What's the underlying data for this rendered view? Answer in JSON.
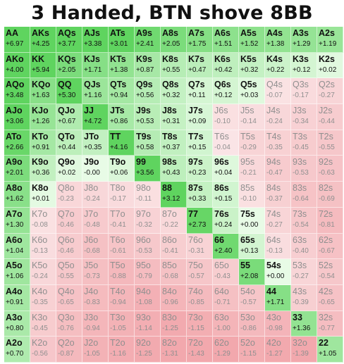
{
  "title": "3 Handed, BTN shove 8BB",
  "colors": {
    "push_strong": "#5fd45f",
    "push_light": "#e8fbe6",
    "neutral": "#ffffff",
    "fold_light": "#fbe9ea",
    "fold_strong": "#f2a8ad"
  },
  "chart_data": {
    "type": "heatmap",
    "title": "3 Handed, BTN shove 8BB",
    "ranks": [
      "A",
      "K",
      "Q",
      "J",
      "T",
      "9",
      "8",
      "7",
      "6",
      "5",
      "4",
      "3",
      "2"
    ],
    "rows": [
      {
        "hands": [
          "AA",
          "AKs",
          "AQs",
          "AJs",
          "ATs",
          "A9s",
          "A8s",
          "A7s",
          "A6s",
          "A5s",
          "A4s",
          "A3s",
          "A2s"
        ],
        "values": [
          6.97,
          4.25,
          3.77,
          3.38,
          3.01,
          2.41,
          2.05,
          1.75,
          1.51,
          1.52,
          1.38,
          1.29,
          1.19
        ],
        "action": [
          "push",
          "push",
          "push",
          "push",
          "push",
          "push",
          "push",
          "push",
          "push",
          "push",
          "push",
          "push",
          "push"
        ]
      },
      {
        "hands": [
          "AKo",
          "KK",
          "KQs",
          "KJs",
          "KTs",
          "K9s",
          "K8s",
          "K7s",
          "K6s",
          "K5s",
          "K4s",
          "K3s",
          "K2s"
        ],
        "values": [
          4.0,
          5.94,
          2.05,
          1.71,
          1.38,
          0.87,
          0.55,
          0.47,
          0.42,
          0.32,
          0.22,
          0.12,
          0.02
        ],
        "action": [
          "push",
          "push",
          "push",
          "push",
          "push",
          "push",
          "push",
          "push",
          "push",
          "push",
          "push",
          "push",
          "push"
        ]
      },
      {
        "hands": [
          "AQo",
          "KQo",
          "QQ",
          "QJs",
          "QTs",
          "Q9s",
          "Q8s",
          "Q7s",
          "Q6s",
          "Q5s",
          "Q4s",
          "Q3s",
          "Q2s"
        ],
        "values": [
          3.48,
          1.63,
          5.3,
          1.16,
          0.94,
          0.56,
          0.32,
          0.11,
          0.12,
          0.03,
          -0.07,
          -0.17,
          -0.27
        ],
        "action": [
          "push",
          "push",
          "push",
          "push",
          "push",
          "push",
          "push",
          "push",
          "push",
          "push",
          "fold",
          "fold",
          "fold"
        ]
      },
      {
        "hands": [
          "AJo",
          "KJo",
          "QJo",
          "JJ",
          "JTs",
          "J9s",
          "J8s",
          "J7s",
          "J6s",
          "J5s",
          "J4s",
          "J3s",
          "J2s"
        ],
        "values": [
          3.06,
          1.26,
          0.67,
          4.72,
          0.86,
          0.53,
          0.31,
          0.09,
          -0.1,
          -0.14,
          -0.24,
          -0.34,
          -0.44
        ],
        "action": [
          "push",
          "push",
          "push",
          "push",
          "push",
          "push",
          "push",
          "push",
          "fold",
          "fold",
          "fold",
          "fold",
          "fold"
        ]
      },
      {
        "hands": [
          "ATo",
          "KTo",
          "QTo",
          "JTo",
          "TT",
          "T9s",
          "T8s",
          "T7s",
          "T6s",
          "T5s",
          "T4s",
          "T3s",
          "T2s"
        ],
        "values": [
          2.66,
          0.91,
          0.44,
          0.35,
          4.16,
          0.58,
          0.37,
          0.15,
          -0.04,
          -0.29,
          -0.35,
          -0.45,
          -0.55
        ],
        "action": [
          "push",
          "push",
          "push",
          "push",
          "push",
          "push",
          "push",
          "push",
          "fold",
          "fold",
          "fold",
          "fold",
          "fold"
        ]
      },
      {
        "hands": [
          "A9o",
          "K9o",
          "Q9o",
          "J9o",
          "T9o",
          "99",
          "98s",
          "97s",
          "96s",
          "95s",
          "94s",
          "93s",
          "92s"
        ],
        "values": [
          2.01,
          0.36,
          0.02,
          -0.0,
          0.06,
          3.56,
          0.43,
          0.23,
          0.04,
          -0.21,
          -0.47,
          -0.53,
          -0.63
        ],
        "action": [
          "push",
          "push",
          "push",
          "push",
          "push",
          "push",
          "push",
          "push",
          "push",
          "fold",
          "fold",
          "fold",
          "fold"
        ]
      },
      {
        "hands": [
          "A8o",
          "K8o",
          "Q8o",
          "J8o",
          "T8o",
          "98o",
          "88",
          "87s",
          "86s",
          "85s",
          "84s",
          "83s",
          "82s"
        ],
        "values": [
          1.62,
          0.01,
          -0.23,
          -0.24,
          -0.17,
          -0.11,
          3.12,
          0.33,
          0.15,
          -0.1,
          -0.37,
          -0.64,
          -0.69
        ],
        "action": [
          "push",
          "push",
          "fold",
          "fold",
          "fold",
          "fold",
          "push",
          "push",
          "push",
          "fold",
          "fold",
          "fold",
          "fold"
        ]
      },
      {
        "hands": [
          "A7o",
          "K7o",
          "Q7o",
          "J7o",
          "T7o",
          "97o",
          "87o",
          "77",
          "76s",
          "75s",
          "74s",
          "73s",
          "72s"
        ],
        "values": [
          1.3,
          -0.08,
          -0.46,
          -0.48,
          -0.41,
          -0.32,
          -0.22,
          2.73,
          0.24,
          0.0,
          -0.27,
          -0.54,
          -0.81
        ],
        "action": [
          "push",
          "fold",
          "fold",
          "fold",
          "fold",
          "fold",
          "fold",
          "push",
          "push",
          "push",
          "fold",
          "fold",
          "fold"
        ]
      },
      {
        "hands": [
          "A6o",
          "K6o",
          "Q6o",
          "J6o",
          "T6o",
          "96o",
          "86o",
          "76o",
          "66",
          "65s",
          "64s",
          "63s",
          "62s"
        ],
        "values": [
          1.04,
          -0.13,
          -0.46,
          -0.68,
          -0.61,
          -0.53,
          -0.41,
          -0.31,
          2.4,
          0.13,
          -0.13,
          -0.4,
          -0.67
        ],
        "action": [
          "push",
          "fold",
          "fold",
          "fold",
          "fold",
          "fold",
          "fold",
          "fold",
          "push",
          "push",
          "fold",
          "fold",
          "fold"
        ]
      },
      {
        "hands": [
          "A5o",
          "K5o",
          "Q5o",
          "J5o",
          "T5o",
          "95o",
          "85o",
          "75o",
          "65o",
          "55",
          "54s",
          "53s",
          "52s"
        ],
        "values": [
          1.06,
          -0.24,
          -0.55,
          -0.73,
          -0.88,
          -0.79,
          -0.68,
          -0.57,
          -0.43,
          2.08,
          0.0,
          -0.27,
          -0.54
        ],
        "action": [
          "push",
          "fold",
          "fold",
          "fold",
          "fold",
          "fold",
          "fold",
          "fold",
          "fold",
          "push",
          "push",
          "fold",
          "fold"
        ]
      },
      {
        "hands": [
          "A4o",
          "K4o",
          "Q4o",
          "J4o",
          "T4o",
          "94o",
          "84o",
          "74o",
          "64o",
          "54o",
          "44",
          "43s",
          "42s"
        ],
        "values": [
          0.91,
          -0.35,
          -0.65,
          -0.83,
          -0.94,
          -1.08,
          -0.96,
          -0.85,
          -0.71,
          -0.57,
          1.71,
          -0.39,
          -0.65
        ],
        "action": [
          "push",
          "fold",
          "fold",
          "fold",
          "fold",
          "fold",
          "fold",
          "fold",
          "fold",
          "fold",
          "push",
          "fold",
          "fold"
        ]
      },
      {
        "hands": [
          "A3o",
          "K3o",
          "Q3o",
          "J3o",
          "T3o",
          "93o",
          "83o",
          "73o",
          "63o",
          "53o",
          "43o",
          "33",
          "32s"
        ],
        "values": [
          0.8,
          -0.45,
          -0.76,
          -0.94,
          -1.05,
          -1.14,
          -1.25,
          -1.15,
          -1.0,
          -0.86,
          -0.98,
          1.36,
          -0.77
        ],
        "action": [
          "push",
          "fold",
          "fold",
          "fold",
          "fold",
          "fold",
          "fold",
          "fold",
          "fold",
          "fold",
          "fold",
          "push",
          "fold"
        ]
      },
      {
        "hands": [
          "A2o",
          "K2o",
          "Q2o",
          "J2o",
          "T2o",
          "92o",
          "82o",
          "72o",
          "62o",
          "52o",
          "42o",
          "32o",
          "22"
        ],
        "values": [
          0.7,
          -0.56,
          -0.87,
          -1.05,
          -1.16,
          -1.25,
          -1.31,
          -1.43,
          -1.29,
          -1.15,
          -1.27,
          -1.39,
          1.05
        ],
        "action": [
          "push",
          "fold",
          "fold",
          "fold",
          "fold",
          "fold",
          "fold",
          "fold",
          "fold",
          "fold",
          "fold",
          "fold",
          "push"
        ]
      }
    ]
  }
}
